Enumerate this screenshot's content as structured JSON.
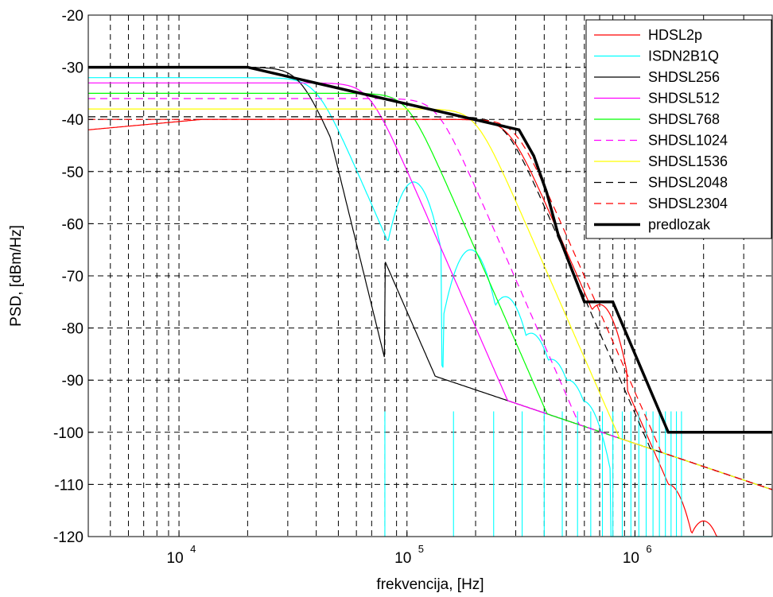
{
  "chart_data": {
    "type": "line",
    "xscale": "log",
    "xlim": [
      4000,
      4000000
    ],
    "ylim": [
      -120,
      -20
    ],
    "xlabel": "frekvencija, [Hz]",
    "ylabel": "PSD, [dBm/Hz]",
    "grid": true,
    "legend_position": "top-right",
    "x_ticks": [
      {
        "value": 10000,
        "base": "10",
        "exp": "4"
      },
      {
        "value": 100000,
        "base": "10",
        "exp": "5"
      },
      {
        "value": 1000000,
        "base": "10",
        "exp": "6"
      }
    ],
    "y_ticks": [
      -20,
      -30,
      -40,
      -50,
      -60,
      -70,
      -80,
      -90,
      -100,
      -110,
      -120
    ],
    "series": [
      {
        "name": "HDSL2p",
        "color": "#ff0000",
        "style": "solid",
        "level": -40,
        "corner": 280000,
        "lowfreq_rolloff": true,
        "nulls": [],
        "lobes": [
          [
            700000,
            -75.5
          ],
          [
            1400000,
            -110
          ],
          [
            2000000,
            -117
          ]
        ]
      },
      {
        "name": "ISDN2B1Q",
        "color": "#00ffff",
        "style": "solid",
        "level": -32,
        "corner": 40000,
        "nulls": [
          80000,
          160000,
          240000,
          320000,
          400000,
          480000,
          560000,
          640000,
          720000,
          800000,
          880000,
          960000,
          1040000,
          1120000,
          1200000,
          1280000,
          1360000,
          1440000,
          1520000,
          1600000
        ],
        "lobes": [
          [
            107000,
            -52
          ],
          [
            190000,
            -65
          ],
          [
            270000,
            -74
          ],
          [
            350000,
            -81
          ],
          [
            430000,
            -86
          ],
          [
            510000,
            -90
          ],
          [
            590000,
            -94
          ]
        ]
      },
      {
        "name": "SHDSL256",
        "color": "#000000",
        "style": "solid",
        "level": -30,
        "corner": 34000,
        "steep_to": [
          80000,
          -86
        ],
        "floor": true,
        "nulls": []
      },
      {
        "name": "SHDSL512",
        "color": "#ff00ff",
        "style": "solid",
        "level": -33,
        "corner": 68000,
        "floor": true,
        "nulls": []
      },
      {
        "name": "SHDSL768",
        "color": "#00ff00",
        "style": "solid",
        "level": -35,
        "corner": 100000,
        "floor": true,
        "nulls": []
      },
      {
        "name": "SHDSL1024",
        "color": "#ff00ff",
        "style": "dashed",
        "level": -36,
        "corner": 135000,
        "floor": true,
        "nulls": []
      },
      {
        "name": "SHDSL1536",
        "color": "#ffff00",
        "style": "solid",
        "level": -38,
        "corner": 200000,
        "floor": true,
        "nulls": []
      },
      {
        "name": "SHDSL2048",
        "color": "#000000",
        "style": "dashed",
        "level": -39.5,
        "corner": 270000,
        "floor": true,
        "nulls": []
      },
      {
        "name": "SHDSL2304",
        "color": "#ff0000",
        "style": "dashed",
        "level": -40,
        "corner": 300000,
        "floor": true,
        "nulls": []
      },
      {
        "name": "predlozak",
        "color": "#000000",
        "style": "thick",
        "points": [
          [
            4000,
            -30
          ],
          [
            20000,
            -30
          ],
          [
            310000,
            -42
          ],
          [
            360000,
            -47
          ],
          [
            410000,
            -54
          ],
          [
            460000,
            -62
          ],
          [
            520000,
            -68
          ],
          [
            600000,
            -75
          ],
          [
            800000,
            -75
          ],
          [
            1400000,
            -100
          ],
          [
            4000000,
            -100
          ]
        ]
      }
    ],
    "floor_line": {
      "from": [
        80000,
        -86
      ],
      "to": [
        4000000,
        -111
      ]
    }
  }
}
